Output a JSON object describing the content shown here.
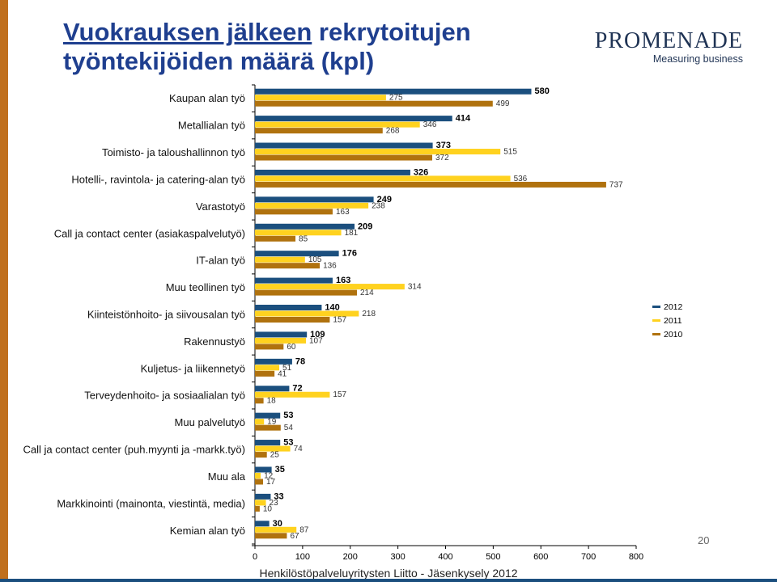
{
  "title": {
    "part1": "Vuokrauksen jälkeen",
    "part2": " rekrytoitujen",
    "line2": "työntekijöiden määrä (kpl)"
  },
  "logo": {
    "name": "PROMENADE",
    "tagline": "Measuring business"
  },
  "page_number": "20",
  "footer": "Henkilöstöpalveluyritysten Liitto - Jäsenkysely 2012",
  "colors": {
    "s2012": "#1b4f7e",
    "s2011": "#ffd21f",
    "s2010": "#b0720e",
    "stripe": "#c0701e",
    "footer_bar": "#1b4f7e"
  },
  "chart_data": {
    "type": "bar",
    "orientation": "horizontal",
    "title": "Vuokrauksen jälkeen rekrytoitujen työntekijöiden määrä (kpl)",
    "xlim": [
      0,
      800
    ],
    "x_ticks": [
      "0",
      "100",
      "200",
      "300",
      "400",
      "500",
      "600",
      "700",
      "800"
    ],
    "categories": [
      "Kaupan alan työ",
      "Metallialan työ",
      "Toimisto- ja taloushallinnon työ",
      "Hotelli-, ravintola- ja catering-alan työ",
      "Varastotyö",
      "Call ja contact center (asiakaspalvelutyö)",
      "IT-alan työ",
      "Muu teollinen työ",
      "Kiinteistönhoito- ja siivousalan työ",
      "Rakennustyö",
      "Kuljetus- ja liikennetyö",
      "Terveydenhoito- ja sosiaalialan työ",
      "Muu palvelutyö",
      "Call ja contact center (puh.myynti ja -markk.työ)",
      "Muu ala",
      "Markkinointi (mainonta, viestintä, media)",
      "Kemian alan työ"
    ],
    "series": [
      {
        "name": "2012",
        "values": [
          580,
          414,
          373,
          326,
          249,
          209,
          176,
          163,
          140,
          109,
          78,
          72,
          53,
          53,
          35,
          33,
          30
        ]
      },
      {
        "name": "2011",
        "values": [
          275,
          346,
          515,
          536,
          238,
          181,
          105,
          314,
          218,
          107,
          51,
          157,
          19,
          74,
          12,
          23,
          87
        ]
      },
      {
        "name": "2010",
        "values": [
          499,
          268,
          372,
          737,
          163,
          85,
          136,
          214,
          157,
          60,
          41,
          18,
          54,
          25,
          17,
          10,
          67
        ]
      }
    ],
    "legend": [
      "2012",
      "2011",
      "2010"
    ],
    "legend_position": "right"
  }
}
